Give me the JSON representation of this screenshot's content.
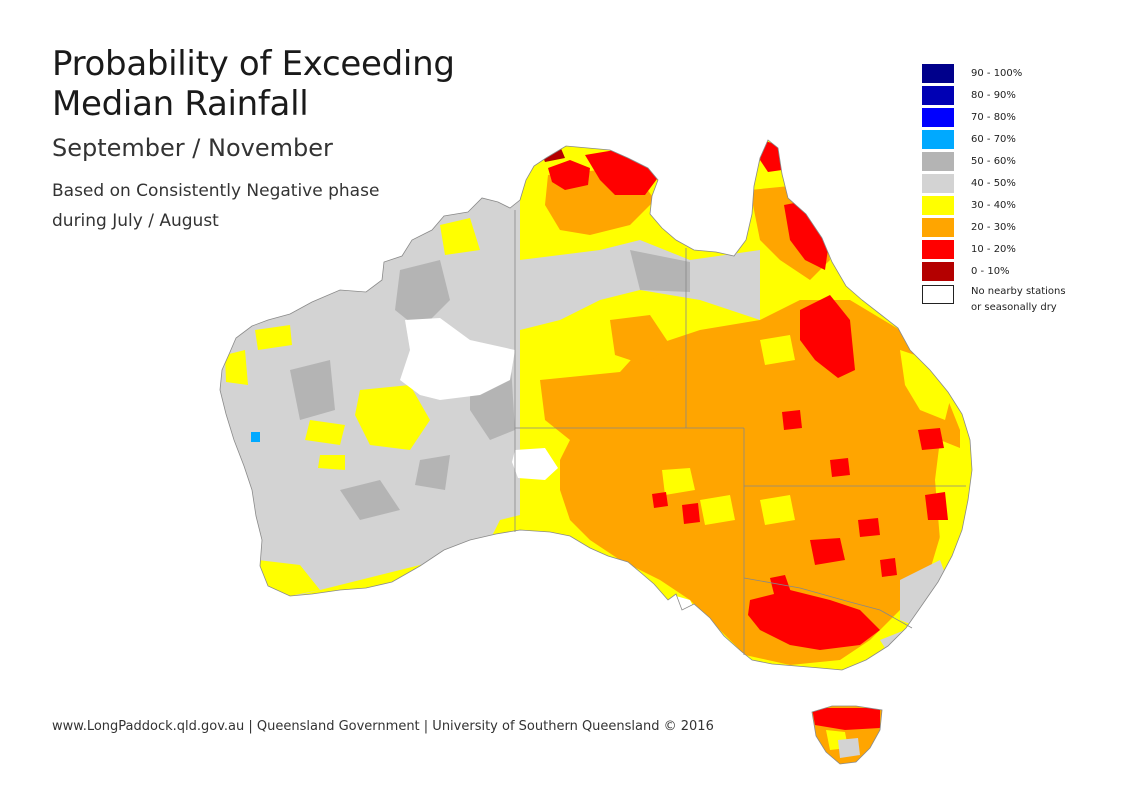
{
  "title": {
    "line1": "Probability of Exceeding",
    "line2": "Median Rainfall"
  },
  "subtitle": "September / November",
  "description": {
    "line1": "Based on Consistently Negative phase",
    "line2": "during July / August"
  },
  "legend": {
    "items": [
      {
        "label": "90 - 100%",
        "color": "#00008b"
      },
      {
        "label": "80 - 90%",
        "color": "#0000b4"
      },
      {
        "label": "70 - 80%",
        "color": "#0000ff"
      },
      {
        "label": "60 - 70%",
        "color": "#00a9ff"
      },
      {
        "label": "50 - 60%",
        "color": "#b4b4b4"
      },
      {
        "label": "40 - 50%",
        "color": "#d3d3d3"
      },
      {
        "label": "30 - 40%",
        "color": "#ffff00"
      },
      {
        "label": "20 - 30%",
        "color": "#ffa500"
      },
      {
        "label": "10 - 20%",
        "color": "#ff0000"
      },
      {
        "label": "0 - 10%",
        "color": "#b40000"
      }
    ],
    "no_data_line1": "No nearby stations",
    "no_data_line2": "or seasonally dry",
    "no_data_color": "#ffffff"
  },
  "footer": "www.LongPaddock.qld.gov.au | Queensland Government | University of Southern Queensland © 2016"
}
